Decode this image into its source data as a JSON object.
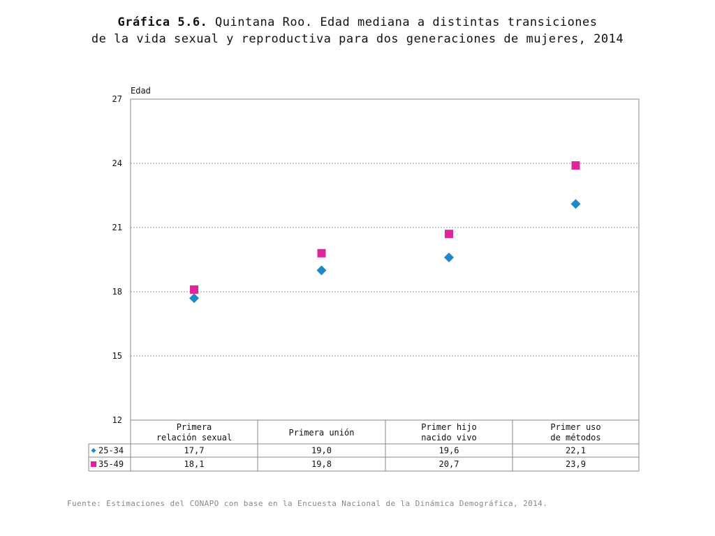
{
  "title": {
    "bold": "Gráfica 5.6.",
    "line1_rest": " Quintana Roo. Edad mediana a distintas transiciones",
    "line2": "de la vida sexual y reproductiva para dos generaciones de mujeres, 2014"
  },
  "source": "Fuente: Estimaciones del CONAPO con base en la Encuesta Nacional de la Dinámica Demográfica, 2014.",
  "colors": {
    "series_25_34": "#1f88c9",
    "series_35_49": "#e0259a",
    "grid": "#999999",
    "axis": "#888888"
  },
  "chart_data": {
    "type": "scatter",
    "ylabel": "Edad",
    "ylim": [
      12,
      27
    ],
    "yticks": [
      "12",
      "15",
      "18",
      "21",
      "24",
      "27"
    ],
    "grid": true,
    "categories": [
      [
        "Primera",
        "relación sexual"
      ],
      [
        "Primera unión"
      ],
      [
        "Primer hijo",
        "nacido vivo"
      ],
      [
        "Primer uso",
        "de métodos"
      ]
    ],
    "series": [
      {
        "name": "25-34",
        "marker": "diamond",
        "values": [
          17.7,
          19.0,
          19.6,
          22.1
        ],
        "labels": [
          "17,7",
          "19,0",
          "19,6",
          "22,1"
        ]
      },
      {
        "name": "35-49",
        "marker": "square",
        "values": [
          18.1,
          19.8,
          20.7,
          23.9
        ],
        "labels": [
          "18,1",
          "19,8",
          "20,7",
          "23,9"
        ]
      }
    ]
  }
}
